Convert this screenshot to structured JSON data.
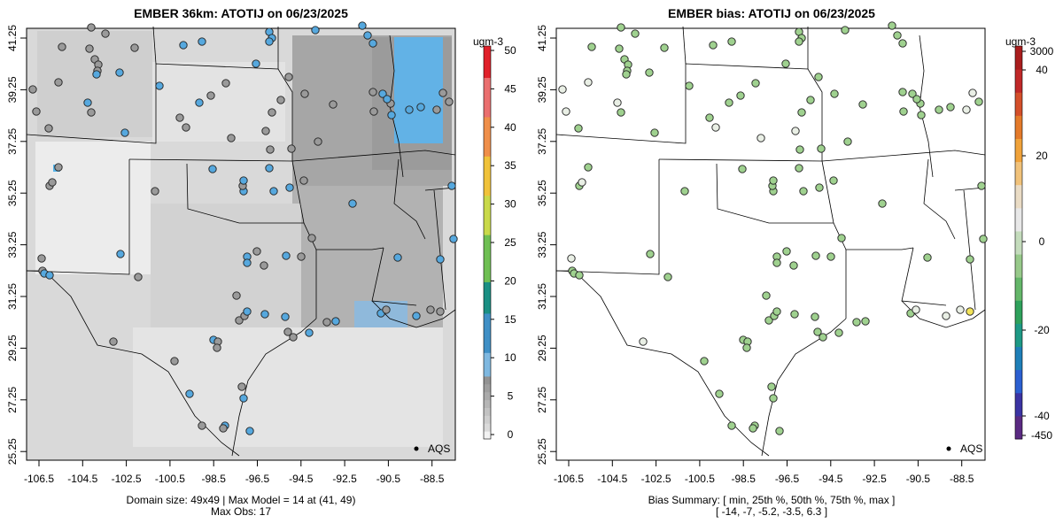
{
  "left_panel": {
    "title": "EMBER 36km: ATOTIJ on 06/23/2025",
    "units": "ugm-3",
    "legend_label": "AQS",
    "caption_line1": "Domain size: 49x49 | Max Model = 14 at (41, 49)",
    "caption_line2": "Max Obs: 17",
    "colorbar_ticks": [
      "0",
      "5",
      "10",
      "15",
      "20",
      "25",
      "30",
      "35",
      "40",
      "45",
      "50"
    ],
    "colorbar_range": [
      0,
      50
    ],
    "colors": {
      "low": "#e6e6e6",
      "mid": "#8c8c8c",
      "blue": "#56b4e9",
      "green": "#4daf4a",
      "yellow": "#f0e442",
      "orange": "#e69f00",
      "red": "#e41a1c"
    }
  },
  "right_panel": {
    "title": "EMBER bias: ATOTIJ on 06/23/2025",
    "units": "ugm-3",
    "legend_label": "AQS",
    "caption_line1": "Bias Summary: [ min, 25th %, 50th %, 75th %, max ]",
    "caption_line2": "[ -14,   -7,   -5.2,   -3.5,   6.3 ]",
    "colorbar_ticks": [
      "3000",
      "40",
      "20",
      "0",
      "-20",
      "-40",
      "-450"
    ],
    "colors": {
      "purple": "#5e3c99",
      "blue": "#2166ac",
      "teal": "#1b9e77",
      "green": "#a6d96a",
      "white": "#f7f7f7",
      "yellow": "#fee08b",
      "orange": "#f46d43",
      "red": "#d73027"
    }
  },
  "axes": {
    "lon_ticks": [
      "-106.5",
      "-104.5",
      "-102.5",
      "-100.5",
      "-98.5",
      "-96.5",
      "-94.5",
      "-92.5",
      "-90.5",
      "-88.5"
    ],
    "lat_ticks": [
      "41.25",
      "39.25",
      "37.25",
      "35.25",
      "33.25",
      "31.25",
      "29.25",
      "27.25",
      "25.25"
    ]
  }
}
